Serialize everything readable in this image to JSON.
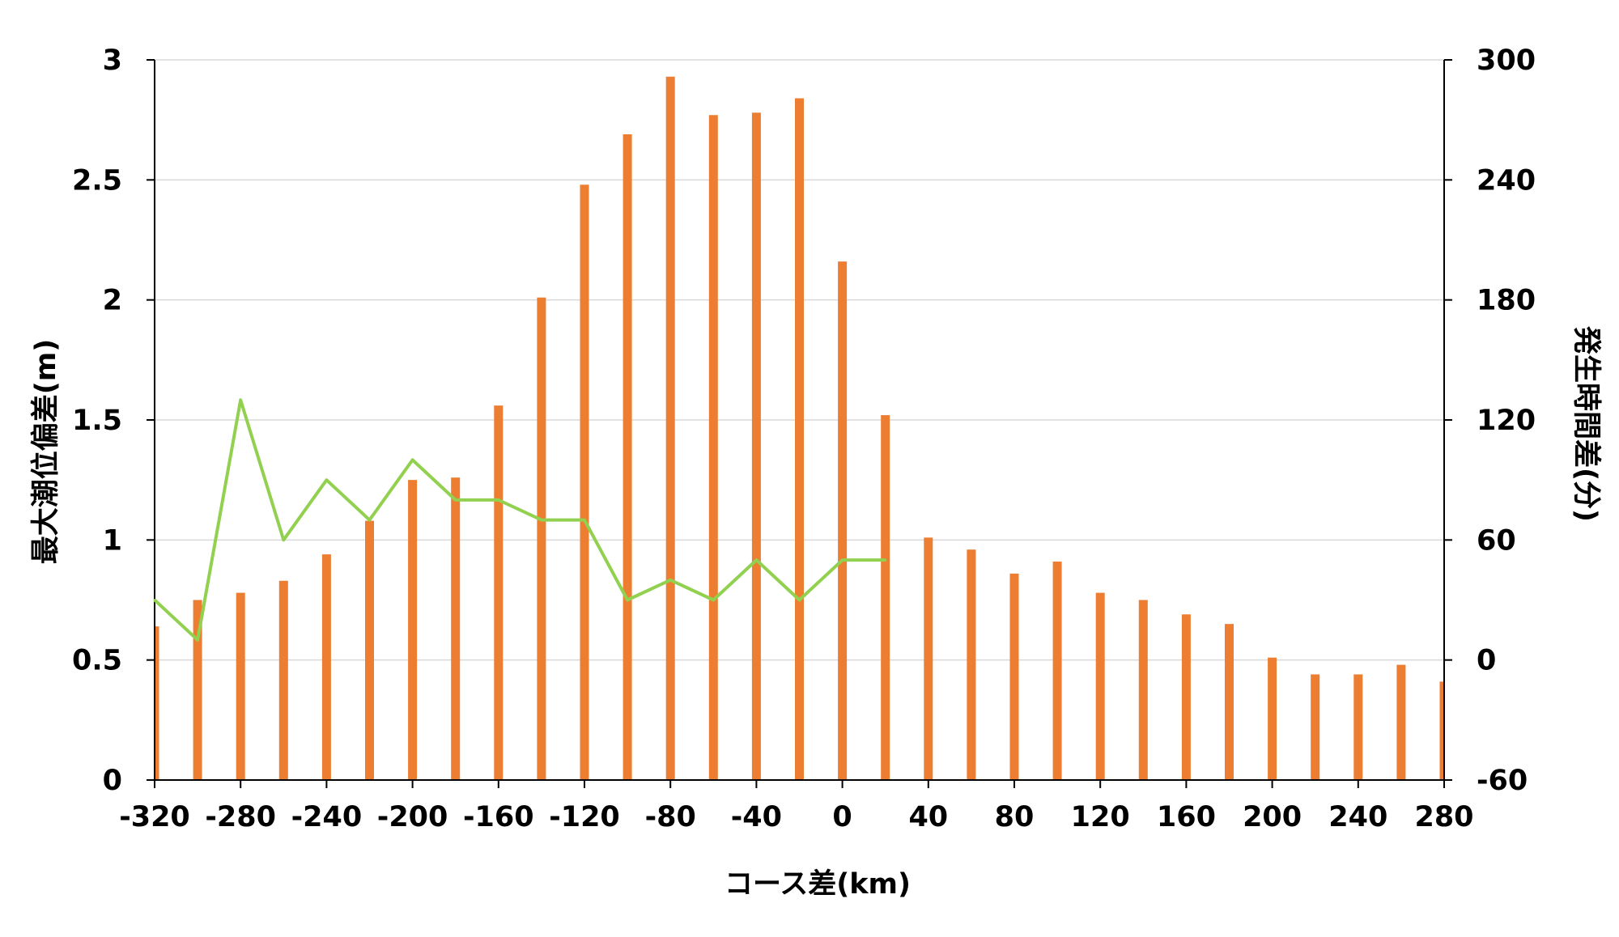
{
  "chart_data": {
    "type": "bar",
    "x": [
      -320,
      -300,
      -280,
      -260,
      -240,
      -220,
      -200,
      -180,
      -160,
      -140,
      -120,
      -100,
      -80,
      -60,
      -40,
      -20,
      0,
      20,
      40,
      60,
      80,
      100,
      120,
      140,
      160,
      180,
      200,
      220,
      240,
      260,
      280
    ],
    "x_tick_labels": [
      "-320",
      "-280",
      "-240",
      "-200",
      "-160",
      "-120",
      "-80",
      "-40",
      "0",
      "40",
      "80",
      "120",
      "160",
      "200",
      "240",
      "280"
    ],
    "xlabel": "コース差(km)",
    "ylabel": "最大潮位偏差(m)",
    "y2label": "発生時間差(分)",
    "ylim": [
      0,
      3
    ],
    "y2lim": [
      -60,
      300
    ],
    "y_tick_labels": [
      "0",
      "0.5",
      "1",
      "1.5",
      "2",
      "2.5",
      "3"
    ],
    "y2_tick_labels": [
      "-60",
      "0",
      "60",
      "120",
      "180",
      "240",
      "300"
    ],
    "grid": true,
    "series": [
      {
        "type": "bar",
        "axis": "left",
        "color": "#ED7D31",
        "values": [
          0.64,
          0.75,
          0.78,
          0.83,
          0.94,
          1.08,
          1.25,
          1.26,
          1.56,
          2.01,
          2.48,
          2.69,
          2.93,
          2.77,
          2.78,
          2.84,
          2.16,
          1.52,
          1.01,
          0.96,
          0.86,
          0.91,
          0.78,
          0.75,
          0.69,
          0.65,
          0.51,
          0.44,
          0.44,
          0.48,
          0.41
        ]
      },
      {
        "type": "line",
        "axis": "right",
        "color": "#92D050",
        "x": [
          -320,
          -300,
          -280,
          -260,
          -240,
          -220,
          -200,
          -180,
          -160,
          -140,
          -120,
          -100,
          -80,
          -60,
          -40,
          -20,
          0,
          20
        ],
        "values": [
          30,
          10,
          130,
          60,
          90,
          70,
          100,
          80,
          80,
          70,
          70,
          30,
          40,
          30,
          50,
          30,
          50,
          50
        ]
      }
    ]
  }
}
